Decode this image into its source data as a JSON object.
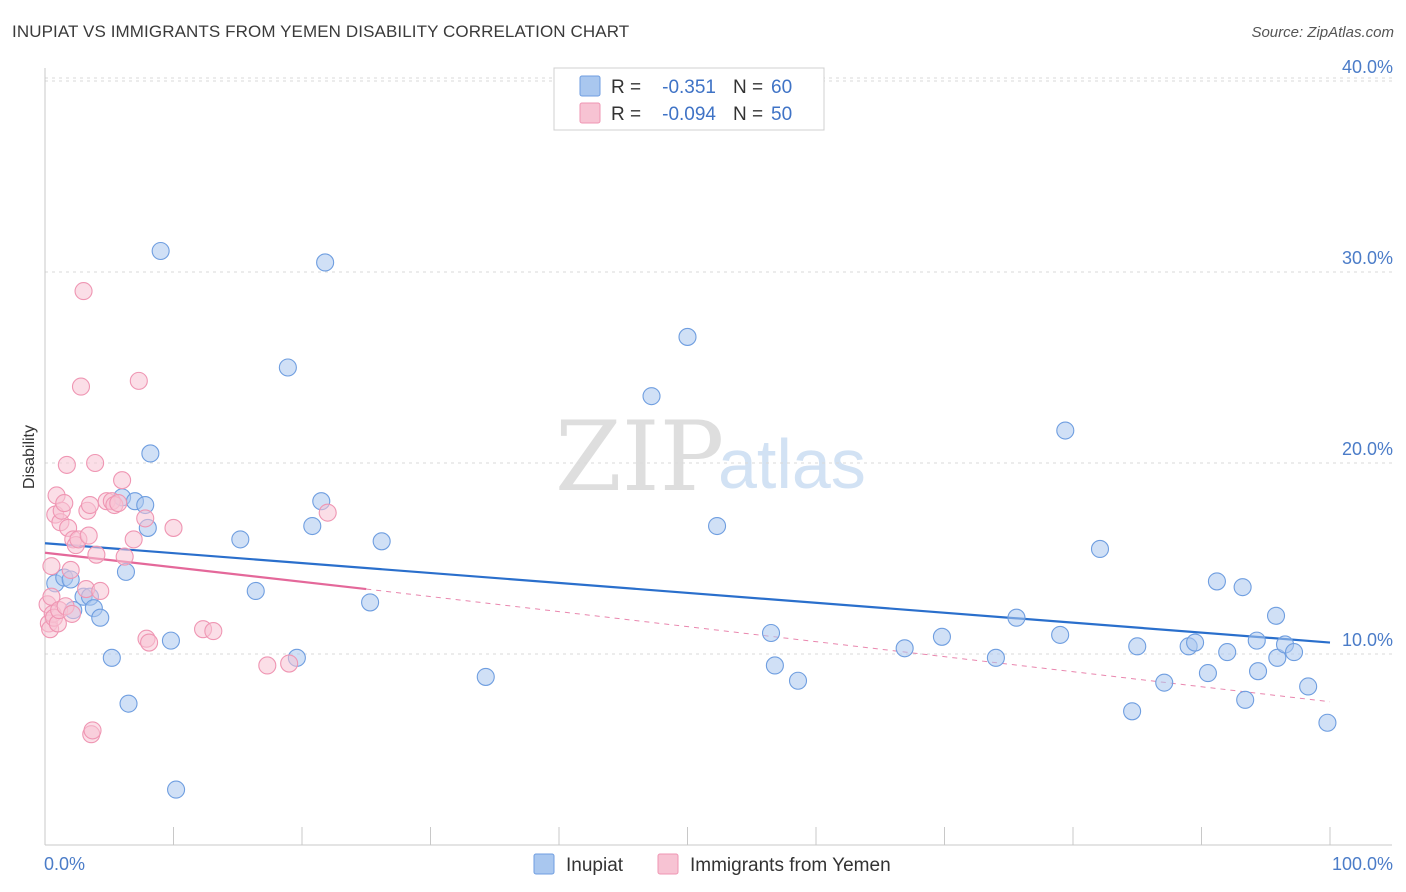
{
  "title": "INUPIAT VS IMMIGRANTS FROM YEMEN DISABILITY CORRELATION CHART",
  "source": "Source: ZipAtlas.com",
  "watermark": {
    "zip": "ZIP",
    "atlas": "atlas"
  },
  "chart_data": {
    "type": "scatter",
    "title": "INUPIAT VS IMMIGRANTS FROM YEMEN DISABILITY CORRELATION CHART",
    "xlabel": "",
    "ylabel": "Disability",
    "xlim": [
      0,
      100
    ],
    "ylim": [
      0,
      41.5
    ],
    "y_ticks": [
      10,
      20,
      30,
      40
    ],
    "y_tick_labels": [
      "10.0%",
      "20.0%",
      "30.0%",
      "40.0%"
    ],
    "x_tick_labels": [
      "0.0%",
      "100.0%"
    ],
    "grid": true,
    "legend": {
      "position": "top-center",
      "entries": [
        {
          "r_label": "R =",
          "r_value": "-0.351",
          "n_label": "N =",
          "n_value": "60"
        },
        {
          "r_label": "R =",
          "r_value": "-0.094",
          "n_label": "N =",
          "n_value": "50"
        }
      ]
    },
    "series": [
      {
        "name": "Inupiat",
        "color": "#6f9ee0",
        "fill": "#a9c7ef",
        "trend_color": "#2a6fcc",
        "trend": {
          "x0": 0,
          "y0": 15.8,
          "x1": 100,
          "y1": 10.6
        },
        "points": [
          [
            0.8,
            13.7
          ],
          [
            1.5,
            14.0
          ],
          [
            2.0,
            13.9
          ],
          [
            2.2,
            12.3
          ],
          [
            3.0,
            13.0
          ],
          [
            3.5,
            13.0
          ],
          [
            3.8,
            12.4
          ],
          [
            4.3,
            11.9
          ],
          [
            5.2,
            9.8
          ],
          [
            6.0,
            18.2
          ],
          [
            6.3,
            14.3
          ],
          [
            6.5,
            7.4
          ],
          [
            7.0,
            18.0
          ],
          [
            7.8,
            17.8
          ],
          [
            8.0,
            16.6
          ],
          [
            8.2,
            20.5
          ],
          [
            9.0,
            31.1
          ],
          [
            9.8,
            10.7
          ],
          [
            10.2,
            2.9
          ],
          [
            15.2,
            16.0
          ],
          [
            16.4,
            13.3
          ],
          [
            18.9,
            25.0
          ],
          [
            19.6,
            9.8
          ],
          [
            20.8,
            16.7
          ],
          [
            21.5,
            18.0
          ],
          [
            21.8,
            30.5
          ],
          [
            25.3,
            12.7
          ],
          [
            26.2,
            15.9
          ],
          [
            34.3,
            8.8
          ],
          [
            47.2,
            23.5
          ],
          [
            50.0,
            26.6
          ],
          [
            52.3,
            16.7
          ],
          [
            56.5,
            11.1
          ],
          [
            56.8,
            9.4
          ],
          [
            58.6,
            8.6
          ],
          [
            66.9,
            10.3
          ],
          [
            69.8,
            10.9
          ],
          [
            74.0,
            9.8
          ],
          [
            75.6,
            11.9
          ],
          [
            79.0,
            11.0
          ],
          [
            79.4,
            21.7
          ],
          [
            82.1,
            15.5
          ],
          [
            84.6,
            7.0
          ],
          [
            85.0,
            10.4
          ],
          [
            87.1,
            8.5
          ],
          [
            89.0,
            10.4
          ],
          [
            90.5,
            9.0
          ],
          [
            91.2,
            13.8
          ],
          [
            93.2,
            13.5
          ],
          [
            93.4,
            7.6
          ],
          [
            94.3,
            10.7
          ],
          [
            95.8,
            12.0
          ],
          [
            95.9,
            9.8
          ],
          [
            96.5,
            10.5
          ],
          [
            97.2,
            10.1
          ],
          [
            98.3,
            8.3
          ],
          [
            99.8,
            6.4
          ],
          [
            89.5,
            10.6
          ],
          [
            94.4,
            9.1
          ],
          [
            92.0,
            10.1
          ]
        ]
      },
      {
        "name": "Immigrants from Yemen",
        "color": "#ef96b3",
        "fill": "#f7c3d3",
        "trend_color": "#e4689a",
        "trend": {
          "x0": 0,
          "y0": 15.3,
          "x1": 25,
          "y1": 13.4
        },
        "trend_dashed": {
          "x0": 25,
          "y0": 13.4,
          "x1": 100,
          "y1": 7.5
        },
        "points": [
          [
            0.2,
            12.6
          ],
          [
            0.3,
            11.6
          ],
          [
            0.4,
            11.3
          ],
          [
            0.5,
            13.0
          ],
          [
            0.6,
            12.1
          ],
          [
            0.7,
            11.9
          ],
          [
            0.8,
            17.3
          ],
          [
            0.9,
            18.3
          ],
          [
            1.0,
            11.6
          ],
          [
            1.1,
            12.3
          ],
          [
            1.2,
            16.9
          ],
          [
            1.3,
            17.5
          ],
          [
            1.5,
            17.9
          ],
          [
            1.6,
            12.5
          ],
          [
            1.7,
            19.9
          ],
          [
            1.8,
            16.6
          ],
          [
            2.0,
            14.4
          ],
          [
            2.1,
            12.1
          ],
          [
            2.2,
            16.0
          ],
          [
            2.4,
            15.7
          ],
          [
            2.6,
            16.0
          ],
          [
            2.8,
            24.0
          ],
          [
            3.0,
            29.0
          ],
          [
            3.2,
            13.4
          ],
          [
            3.3,
            17.5
          ],
          [
            3.4,
            16.2
          ],
          [
            3.5,
            17.8
          ],
          [
            3.6,
            5.8
          ],
          [
            3.7,
            6.0
          ],
          [
            3.9,
            20.0
          ],
          [
            4.0,
            15.2
          ],
          [
            4.3,
            13.3
          ],
          [
            4.8,
            18.0
          ],
          [
            5.2,
            18.0
          ],
          [
            5.4,
            17.8
          ],
          [
            5.7,
            17.9
          ],
          [
            6.0,
            19.1
          ],
          [
            6.2,
            15.1
          ],
          [
            6.9,
            16.0
          ],
          [
            7.3,
            24.3
          ],
          [
            7.8,
            17.1
          ],
          [
            7.9,
            10.8
          ],
          [
            8.1,
            10.6
          ],
          [
            10.0,
            16.6
          ],
          [
            12.3,
            11.3
          ],
          [
            13.1,
            11.2
          ],
          [
            17.3,
            9.4
          ],
          [
            19.0,
            9.5
          ],
          [
            22.0,
            17.4
          ],
          [
            0.5,
            14.6
          ]
        ]
      }
    ]
  }
}
